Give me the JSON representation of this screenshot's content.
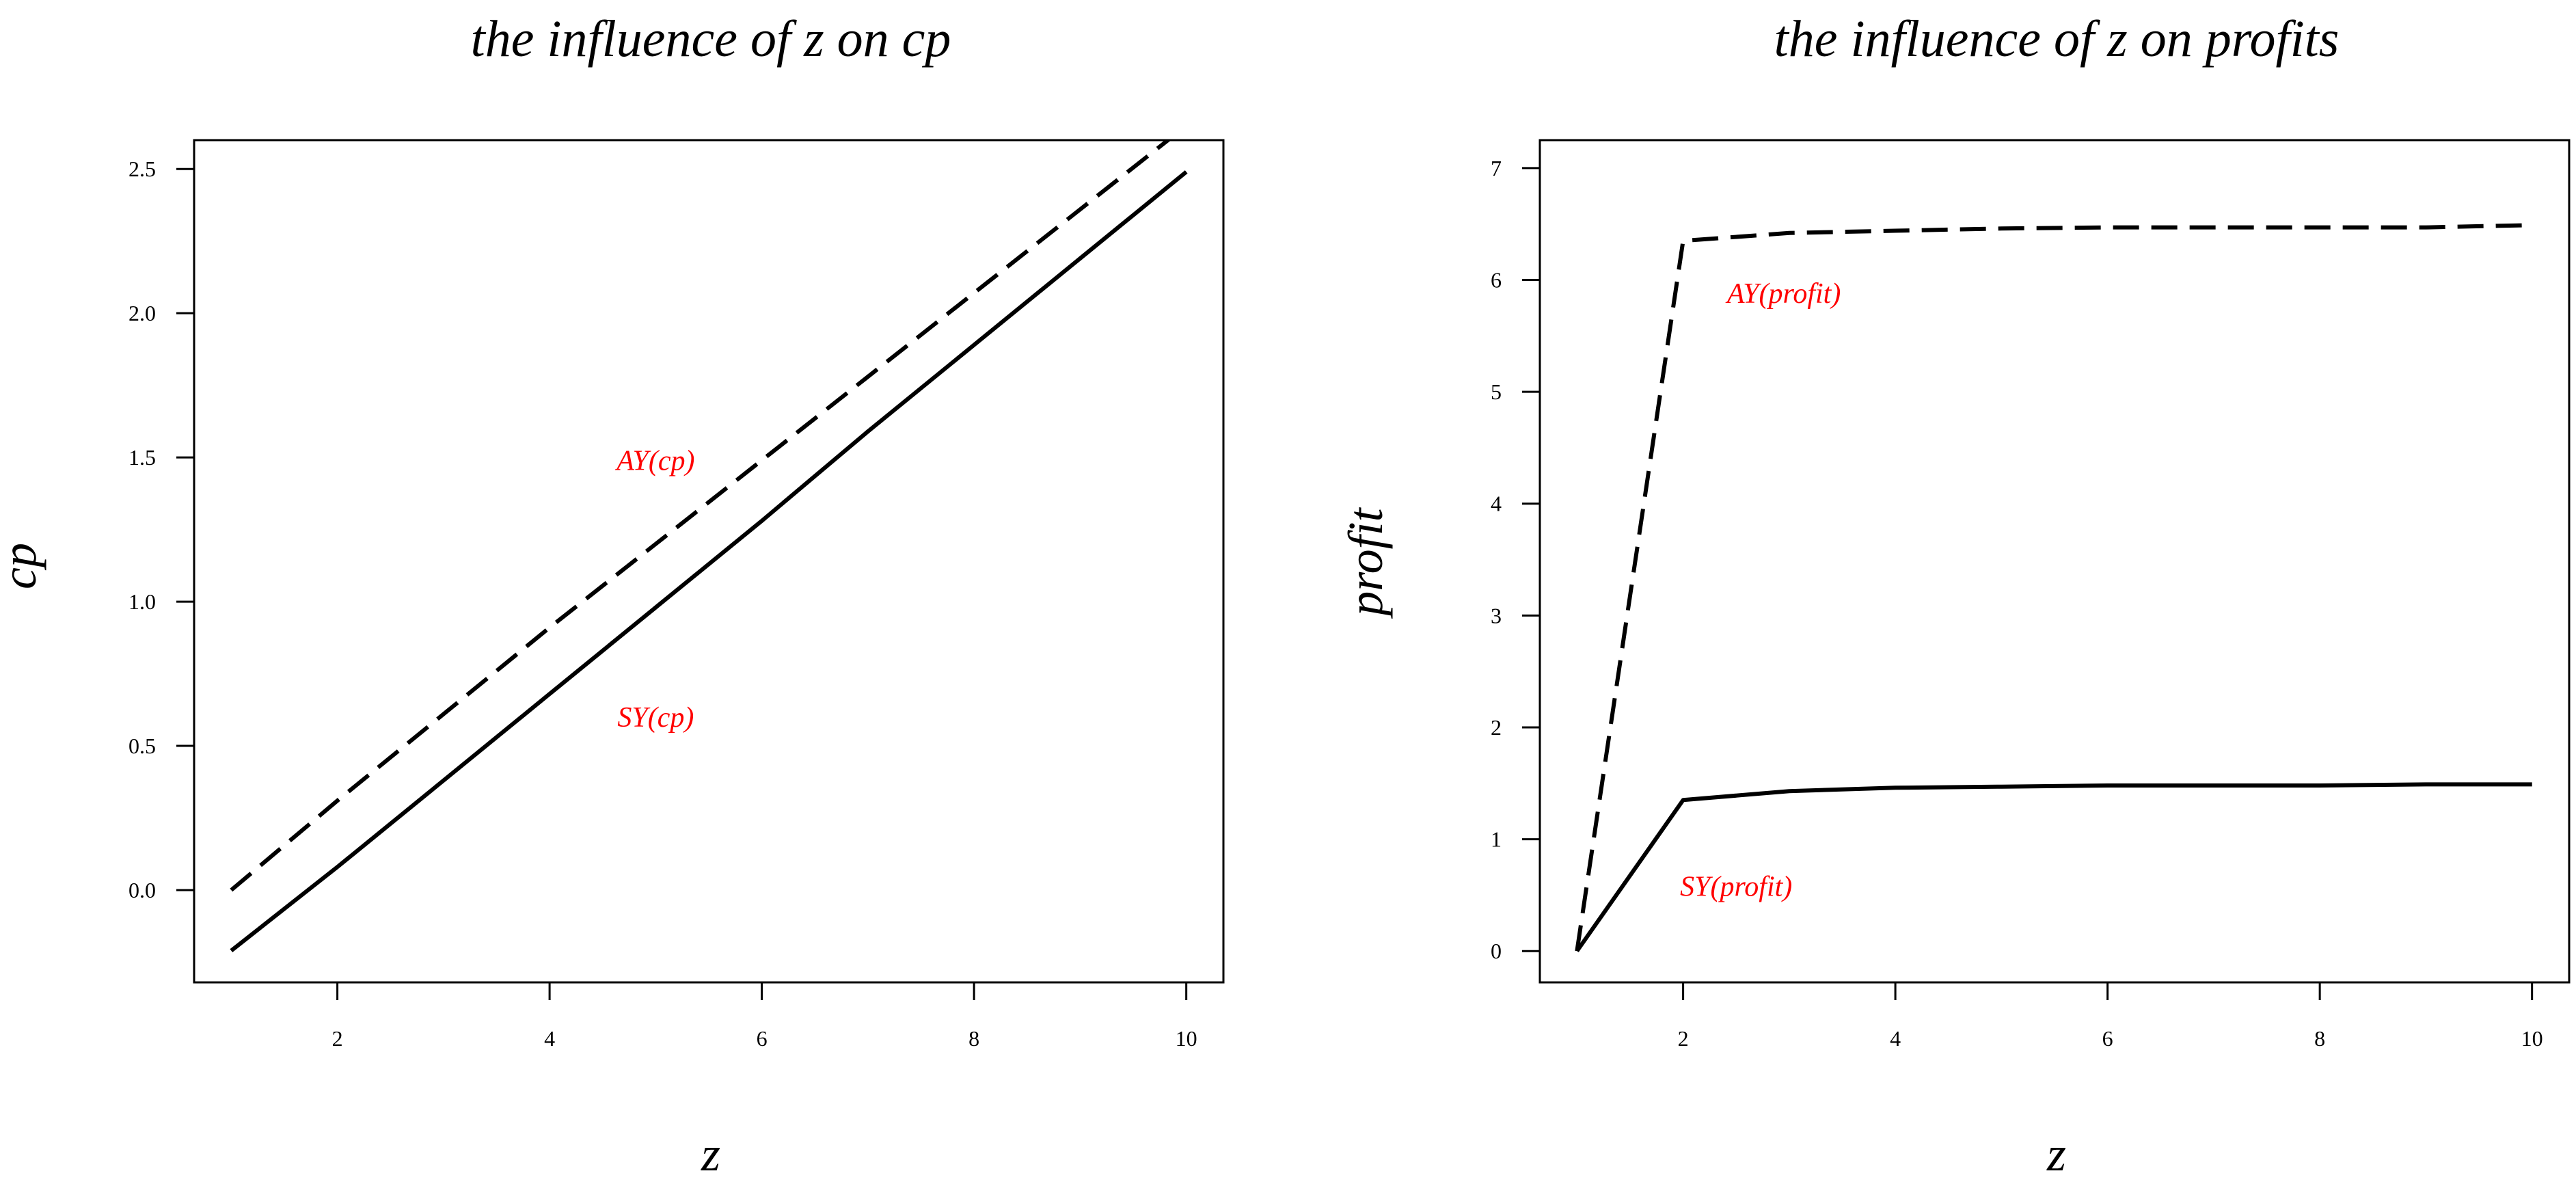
{
  "colors": {
    "line": "#000000",
    "annotation": "#ff0000"
  },
  "chart_data": [
    {
      "type": "line",
      "title": "the influence of  z on cp",
      "xlabel": "z",
      "ylabel": "cp",
      "xlim": [
        0.65,
        10.35
      ],
      "ylim": [
        -0.32,
        2.6
      ],
      "xticks": [
        2,
        4,
        6,
        8,
        10
      ],
      "xtick_labels": [
        "2",
        "4",
        "6",
        "8",
        "10"
      ],
      "yticks": [
        0.0,
        0.5,
        1.0,
        1.5,
        2.0,
        2.5
      ],
      "ytick_labels": [
        "0.0",
        "0.5",
        "1.0",
        "1.5",
        "2.0",
        "2.5"
      ],
      "grid": false,
      "legend": "none",
      "series": [
        {
          "style": "dashed",
          "x": [
            1,
            2,
            3,
            4,
            5,
            6,
            7,
            8,
            9,
            10
          ],
          "y": [
            0.0,
            0.31,
            0.61,
            0.91,
            1.2,
            1.49,
            1.78,
            2.07,
            2.36,
            2.65
          ]
        },
        {
          "style": "solid",
          "x": [
            1,
            2,
            3,
            4,
            5,
            6,
            7,
            8,
            9,
            10
          ],
          "y": [
            -0.21,
            0.08,
            0.38,
            0.68,
            0.98,
            1.28,
            1.59,
            1.89,
            2.19,
            2.49
          ]
        }
      ],
      "annotations": [
        {
          "text": "AY(cp)",
          "x": 5.0,
          "y": 1.49
        },
        {
          "text": "SY(cp)",
          "x": 5.0,
          "y": 0.6
        }
      ]
    },
    {
      "type": "line",
      "title": "the influence of  z on profits",
      "xlabel": "z",
      "ylabel": "profit",
      "xlim": [
        0.65,
        10.35
      ],
      "ylim": [
        -0.28,
        7.25
      ],
      "xticks": [
        2,
        4,
        6,
        8,
        10
      ],
      "xtick_labels": [
        "2",
        "4",
        "6",
        "8",
        "10"
      ],
      "yticks": [
        0,
        1,
        2,
        3,
        4,
        5,
        6,
        7
      ],
      "ytick_labels": [
        "0",
        "1",
        "2",
        "3",
        "4",
        "5",
        "6",
        "7"
      ],
      "grid": false,
      "legend": "none",
      "series": [
        {
          "style": "dashed",
          "x": [
            1,
            2,
            3,
            4,
            5,
            6,
            7,
            8,
            9,
            10
          ],
          "y": [
            0.0,
            6.35,
            6.42,
            6.44,
            6.46,
            6.47,
            6.47,
            6.47,
            6.47,
            6.49
          ]
        },
        {
          "style": "solid",
          "x": [
            1,
            2,
            3,
            4,
            5,
            6,
            7,
            8,
            9,
            10
          ],
          "y": [
            0.0,
            1.35,
            1.43,
            1.46,
            1.47,
            1.48,
            1.48,
            1.48,
            1.49,
            1.49
          ]
        }
      ],
      "annotations": [
        {
          "text": "AY(profit)",
          "x": 2.95,
          "y": 5.88
        },
        {
          "text": "SY(profit)",
          "x": 2.5,
          "y": 0.58
        }
      ]
    }
  ]
}
